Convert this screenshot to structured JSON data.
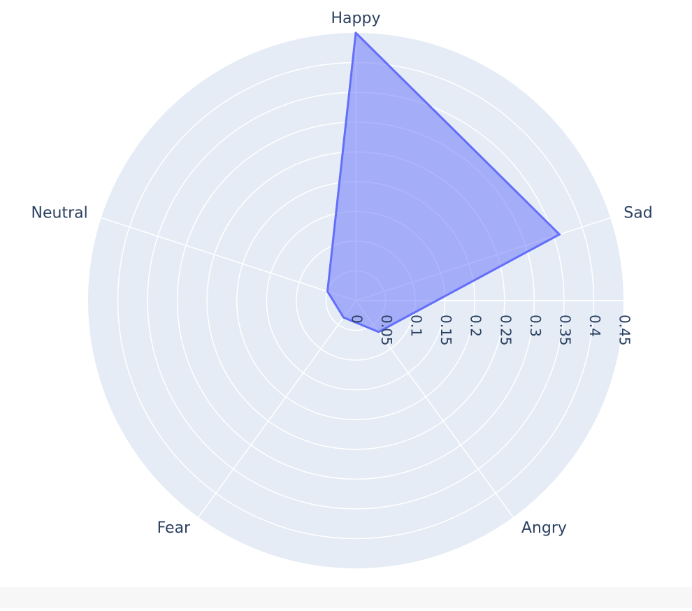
{
  "chart_data": {
    "type": "radar",
    "categories": [
      "Happy",
      "Sad",
      "Angry",
      "Fear",
      "Neutral"
    ],
    "values": [
      0.45,
      0.36,
      0.065,
      0.035,
      0.05
    ],
    "radial_range": [
      0,
      0.45
    ],
    "radial_ticks": [
      "0",
      "0.05",
      "0.1",
      "0.15",
      "0.2",
      "0.25",
      "0.3",
      "0.35",
      "0.4",
      "0.45"
    ],
    "radial_tick_values": [
      0,
      0.05,
      0.1,
      0.15,
      0.2,
      0.25,
      0.3,
      0.35,
      0.4,
      0.45
    ],
    "grid": true,
    "colors": {
      "polar_bg": "#e5ecf6",
      "grid": "#ffffff",
      "line": "#636efa",
      "fill": "rgba(99,110,250,0.5)",
      "text": "#2a3f5f"
    }
  }
}
